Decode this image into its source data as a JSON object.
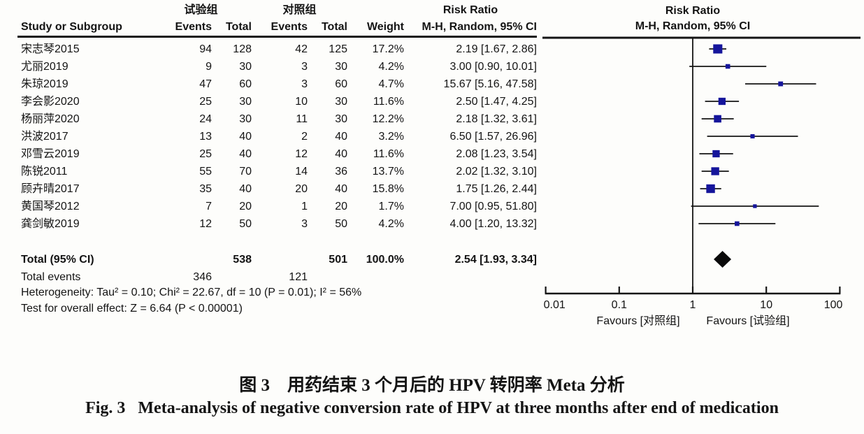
{
  "header": {
    "group1": "试验组",
    "group2": "对照组",
    "col_study": "Study or Subgroup",
    "col_events": "Events",
    "col_total": "Total",
    "col_events2": "Events",
    "col_total2": "Total",
    "col_weight": "Weight",
    "col_ci": "M-H, Random, 95% CI",
    "risk_ratio": "Risk Ratio",
    "method": "M-H, Random, 95% CI"
  },
  "chart_data": {
    "type": "forest",
    "x_scale": "log10",
    "x_ticks": [
      0.01,
      0.1,
      1,
      10,
      100
    ],
    "x_tick_labels": [
      "0.01",
      "0.1",
      "1",
      "10",
      "100"
    ],
    "xlim": [
      0.01,
      100
    ],
    "favours_left": "Favours [对照组]",
    "favours_right": "Favours [试验组]",
    "marker_color": "#15159b",
    "diamond_color": "#0a0a0a",
    "line_color": "#141414",
    "studies": [
      {
        "name": "宋志琴2015",
        "events1": "94",
        "total1": "128",
        "events2": "42",
        "total2": "125",
        "weight": "17.2%",
        "weight_val": 17.2,
        "rr": 2.19,
        "lo": 1.67,
        "hi": 2.86,
        "ci_text": "2.19 [1.67, 2.86]"
      },
      {
        "name": "尤丽2019",
        "events1": "9",
        "total1": "30",
        "events2": "3",
        "total2": "30",
        "weight": "4.2%",
        "weight_val": 4.2,
        "rr": 3.0,
        "lo": 0.9,
        "hi": 10.01,
        "ci_text": "3.00 [0.90, 10.01]"
      },
      {
        "name": "朱琼2019",
        "events1": "47",
        "total1": "60",
        "events2": "3",
        "total2": "60",
        "weight": "4.7%",
        "weight_val": 4.7,
        "rr": 15.67,
        "lo": 5.16,
        "hi": 47.58,
        "ci_text": "15.67 [5.16, 47.58]"
      },
      {
        "name": "李会影2020",
        "events1": "25",
        "total1": "30",
        "events2": "10",
        "total2": "30",
        "weight": "11.6%",
        "weight_val": 11.6,
        "rr": 2.5,
        "lo": 1.47,
        "hi": 4.25,
        "ci_text": "2.50 [1.47, 4.25]"
      },
      {
        "name": "杨丽萍2020",
        "events1": "24",
        "total1": "30",
        "events2": "11",
        "total2": "30",
        "weight": "12.2%",
        "weight_val": 12.2,
        "rr": 2.18,
        "lo": 1.32,
        "hi": 3.61,
        "ci_text": "2.18 [1.32, 3.61]"
      },
      {
        "name": "洪波2017",
        "events1": "13",
        "total1": "40",
        "events2": "2",
        "total2": "40",
        "weight": "3.2%",
        "weight_val": 3.2,
        "rr": 6.5,
        "lo": 1.57,
        "hi": 26.96,
        "ci_text": "6.50 [1.57, 26.96]"
      },
      {
        "name": "邓雪云2019",
        "events1": "25",
        "total1": "40",
        "events2": "12",
        "total2": "40",
        "weight": "11.6%",
        "weight_val": 11.6,
        "rr": 2.08,
        "lo": 1.23,
        "hi": 3.54,
        "ci_text": "2.08 [1.23, 3.54]"
      },
      {
        "name": "陈锐2011",
        "events1": "55",
        "total1": "70",
        "events2": "14",
        "total2": "36",
        "weight": "13.7%",
        "weight_val": 13.7,
        "rr": 2.02,
        "lo": 1.32,
        "hi": 3.1,
        "ci_text": "2.02 [1.32, 3.10]"
      },
      {
        "name": "顾卉晴2017",
        "events1": "35",
        "total1": "40",
        "events2": "20",
        "total2": "40",
        "weight": "15.8%",
        "weight_val": 15.8,
        "rr": 1.75,
        "lo": 1.26,
        "hi": 2.44,
        "ci_text": "1.75 [1.26, 2.44]"
      },
      {
        "name": "黄国琴2012",
        "events1": "7",
        "total1": "20",
        "events2": "1",
        "total2": "20",
        "weight": "1.7%",
        "weight_val": 1.7,
        "rr": 7.0,
        "lo": 0.95,
        "hi": 51.8,
        "ci_text": "7.00 [0.95, 51.80]"
      },
      {
        "name": "龚剑敏2019",
        "events1": "12",
        "total1": "50",
        "events2": "3",
        "total2": "50",
        "weight": "4.2%",
        "weight_val": 4.2,
        "rr": 4.0,
        "lo": 1.2,
        "hi": 13.32,
        "ci_text": "4.00 [1.20, 13.32]"
      }
    ],
    "total": {
      "label": "Total (95% CI)",
      "total1": "538",
      "total2": "501",
      "weight": "100.0%",
      "rr": 2.54,
      "lo": 1.93,
      "hi": 3.34,
      "ci_text": "2.54 [1.93, 3.34]"
    },
    "total_events": {
      "label": "Total events",
      "events1": "346",
      "events2": "121"
    },
    "heterogeneity": "Heterogeneity: Tau² = 0.10; Chi² = 22.67, df = 10 (P = 0.01); I² = 56%",
    "overall_effect": "Test for overall effect: Z = 6.64 (P < 0.00001)"
  },
  "caption": {
    "zh": "图 3　用药结束 3 个月后的 HPV 转阴率 Meta 分析",
    "en": "Fig. 3   Meta-analysis of negative conversion rate of HPV at three months after end of medication"
  }
}
